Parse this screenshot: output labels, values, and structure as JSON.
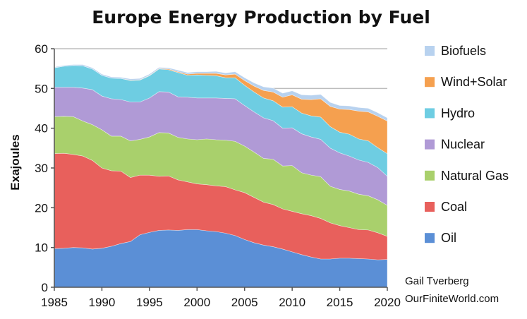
{
  "chart_data": {
    "type": "area",
    "stacked": true,
    "title": "Europe Energy Production by Fuel",
    "xlabel": "",
    "ylabel": "Exajoules",
    "xlim": [
      1985,
      2020
    ],
    "ylim": [
      0,
      60
    ],
    "x_ticks": [
      1985,
      1990,
      1995,
      2000,
      2005,
      2010,
      2015,
      2020
    ],
    "y_ticks": [
      0,
      10,
      20,
      30,
      40,
      50,
      60
    ],
    "grid": "horizontal",
    "legend_position": "right",
    "x": [
      1985,
      1986,
      1987,
      1988,
      1989,
      1990,
      1991,
      1992,
      1993,
      1994,
      1995,
      1996,
      1997,
      1998,
      1999,
      2000,
      2001,
      2002,
      2003,
      2004,
      2005,
      2006,
      2007,
      2008,
      2009,
      2010,
      2011,
      2012,
      2013,
      2014,
      2015,
      2016,
      2017,
      2018,
      2019,
      2020
    ],
    "series": [
      {
        "name": "Oil",
        "color": "#5b8fd6",
        "values": [
          9.7,
          9.8,
          10.0,
          9.9,
          9.6,
          9.8,
          10.3,
          11.0,
          11.5,
          13.2,
          13.8,
          14.3,
          14.4,
          14.3,
          14.5,
          14.5,
          14.2,
          14.0,
          13.6,
          13.0,
          12.0,
          11.2,
          10.6,
          10.2,
          9.6,
          8.9,
          8.2,
          7.6,
          7.1,
          7.1,
          7.3,
          7.3,
          7.2,
          7.1,
          6.9,
          7.0
        ]
      },
      {
        "name": "Coal",
        "color": "#e8605c",
        "values": [
          23.9,
          23.9,
          23.4,
          23.1,
          22.3,
          20.2,
          19.0,
          18.2,
          16.1,
          15.0,
          14.4,
          13.6,
          13.6,
          12.7,
          12.0,
          11.5,
          11.6,
          11.5,
          11.7,
          11.5,
          11.8,
          11.4,
          10.8,
          10.6,
          10.1,
          10.2,
          10.3,
          10.4,
          10.2,
          9.1,
          8.2,
          7.7,
          7.3,
          7.3,
          6.8,
          5.8
        ]
      },
      {
        "name": "Natural Gas",
        "color": "#a9d06c",
        "values": [
          9.3,
          9.3,
          9.5,
          8.8,
          9.0,
          9.6,
          8.7,
          8.8,
          9.2,
          9.0,
          9.6,
          11.0,
          10.8,
          10.7,
          10.8,
          11.1,
          11.5,
          11.6,
          11.7,
          12.2,
          11.7,
          11.4,
          11.0,
          11.4,
          10.8,
          11.5,
          10.3,
          10.2,
          10.5,
          9.2,
          9.1,
          9.2,
          8.9,
          8.6,
          8.3,
          7.8
        ]
      },
      {
        "name": "Nuclear",
        "color": "#b09ad6",
        "values": [
          7.4,
          7.3,
          7.4,
          8.3,
          8.8,
          8.5,
          9.4,
          9.2,
          9.8,
          9.4,
          9.8,
          10.3,
          10.3,
          10.2,
          10.5,
          10.5,
          10.3,
          10.5,
          10.5,
          10.7,
          10.2,
          10.1,
          10.2,
          9.7,
          9.5,
          9.5,
          9.8,
          9.6,
          9.4,
          9.6,
          9.2,
          8.8,
          8.6,
          8.4,
          8.1,
          7.3
        ]
      },
      {
        "name": "Hydro",
        "color": "#6ecde2",
        "values": [
          4.9,
          5.3,
          5.5,
          5.6,
          5.2,
          5.2,
          5.2,
          5.3,
          5.4,
          5.5,
          5.6,
          5.7,
          5.6,
          6.1,
          5.5,
          5.8,
          5.7,
          5.6,
          5.2,
          5.3,
          5.1,
          5.0,
          5.0,
          5.0,
          5.3,
          5.3,
          5.2,
          5.3,
          5.6,
          5.4,
          5.2,
          5.5,
          5.3,
          5.4,
          5.0,
          5.7
        ]
      },
      {
        "name": "Wind+Solar",
        "color": "#f5a04f",
        "values": [
          0.0,
          0.0,
          0.0,
          0.0,
          0.0,
          0.0,
          0.0,
          0.0,
          0.1,
          0.1,
          0.1,
          0.1,
          0.2,
          0.2,
          0.3,
          0.4,
          0.5,
          0.6,
          0.7,
          0.9,
          1.2,
          1.5,
          1.9,
          2.2,
          2.5,
          3.0,
          3.5,
          4.1,
          4.6,
          5.1,
          5.8,
          6.2,
          7.0,
          7.3,
          7.9,
          8.2
        ]
      },
      {
        "name": "Biofuels",
        "color": "#b8d2ef",
        "values": [
          0.2,
          0.2,
          0.2,
          0.3,
          0.3,
          0.3,
          0.3,
          0.3,
          0.3,
          0.3,
          0.3,
          0.3,
          0.3,
          0.4,
          0.4,
          0.4,
          0.4,
          0.5,
          0.5,
          0.6,
          0.7,
          0.8,
          0.9,
          1.0,
          1.0,
          1.0,
          1.1,
          1.1,
          1.1,
          1.0,
          0.9,
          0.9,
          0.9,
          0.9,
          0.9,
          0.8
        ]
      }
    ],
    "credit": [
      "Gail Tverberg",
      "OurFiniteWorld.com"
    ]
  }
}
